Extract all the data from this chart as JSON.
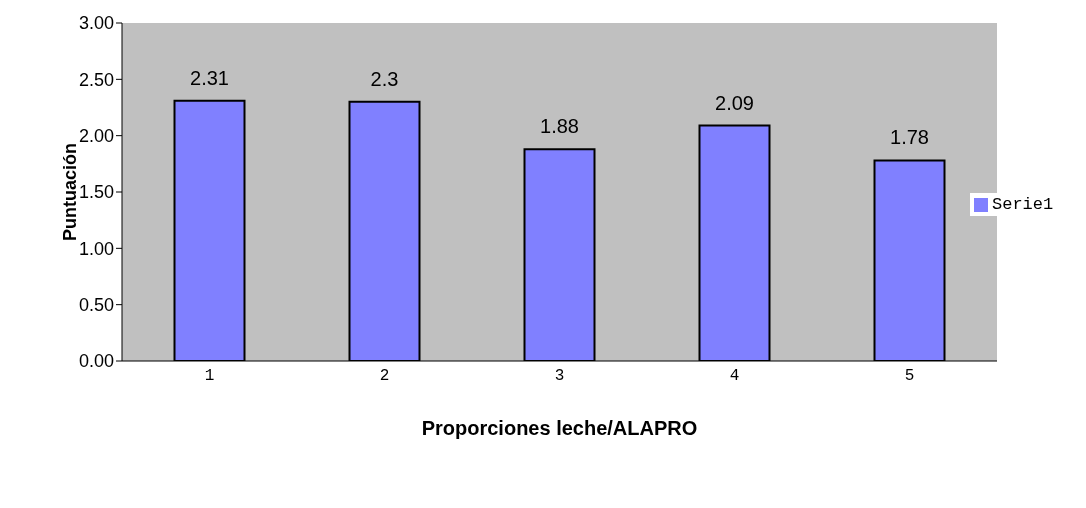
{
  "chart_data": {
    "type": "bar",
    "xlabel": "Proporciones leche/ALAPRO",
    "ylabel": "Puntuación",
    "categories": [
      "1",
      "2",
      "3",
      "4",
      "5"
    ],
    "series": [
      {
        "name": "Serie1",
        "color": "#8080ff",
        "values": [
          2.31,
          2.3,
          1.88,
          2.09,
          1.78
        ]
      }
    ],
    "ylim": [
      0,
      3
    ],
    "yticks": [
      {
        "value": 0,
        "label": "0.00"
      },
      {
        "value": 0.5,
        "label": "0.50"
      },
      {
        "value": 1,
        "label": "1.00"
      },
      {
        "value": 1.5,
        "label": "1.50"
      },
      {
        "value": 2,
        "label": "2.00"
      },
      {
        "value": 2.5,
        "label": "2.50"
      },
      {
        "value": 3,
        "label": "3.00"
      }
    ],
    "data_labels": true,
    "legend": "right",
    "grid": false
  }
}
